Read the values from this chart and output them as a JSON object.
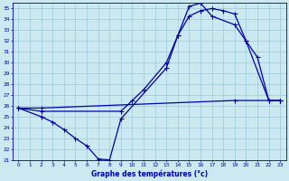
{
  "xlabel": "Graphe des températures (°c)",
  "bg_color": "#cce8f0",
  "grid_color": "#99ccdd",
  "line_color": "#0000aa",
  "xlim": [
    -0.5,
    23.5
  ],
  "ylim": [
    21,
    35.5
  ],
  "xticks": [
    0,
    1,
    2,
    3,
    4,
    5,
    6,
    7,
    8,
    9,
    10,
    11,
    12,
    13,
    14,
    15,
    16,
    17,
    18,
    19,
    20,
    21,
    22,
    23
  ],
  "yticks": [
    21,
    22,
    23,
    24,
    25,
    26,
    27,
    28,
    29,
    30,
    31,
    32,
    33,
    34,
    35
  ],
  "line1_x": [
    0,
    2,
    3,
    4,
    5,
    6,
    7,
    8,
    9,
    13,
    14,
    15,
    16,
    17,
    19,
    20,
    21,
    22,
    23
  ],
  "line1_y": [
    25.8,
    25.0,
    24.5,
    23.8,
    23.0,
    22.3,
    21.1,
    21.0,
    24.8,
    29.5,
    32.5,
    35.2,
    35.5,
    34.3,
    33.5,
    32.0,
    30.5,
    26.5,
    26.5
  ],
  "line2_x": [
    0,
    2,
    9,
    10,
    11,
    13,
    14,
    15,
    16,
    17,
    18,
    19,
    20,
    22,
    23
  ],
  "line2_y": [
    25.8,
    25.5,
    25.5,
    26.5,
    27.5,
    30.0,
    32.5,
    34.3,
    34.8,
    35.0,
    34.8,
    34.5,
    32.0,
    26.5,
    26.5
  ],
  "line3_x": [
    0,
    2,
    19,
    23
  ],
  "line3_y": [
    25.8,
    25.8,
    26.5,
    26.5
  ]
}
